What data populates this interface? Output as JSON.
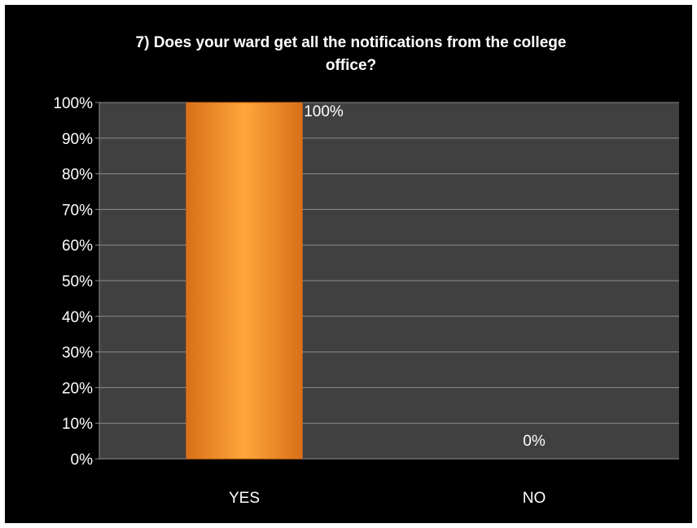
{
  "chart_data": {
    "type": "bar",
    "title": "7) Does your ward get all the notifications from the college office?",
    "title_lines": [
      "7) Does your ward get all the notifications from the college",
      "office?"
    ],
    "categories": [
      "YES",
      "NO"
    ],
    "values": [
      100,
      0
    ],
    "data_labels": [
      "100%",
      "0%"
    ],
    "ylim": [
      0,
      100
    ],
    "y_ticks": [
      0,
      10,
      20,
      30,
      40,
      50,
      60,
      70,
      80,
      90,
      100
    ],
    "y_tick_labels": [
      "0%",
      "10%",
      "20%",
      "30%",
      "40%",
      "50%",
      "60%",
      "70%",
      "80%",
      "90%",
      "100%"
    ],
    "xlabel": "",
    "ylabel": "",
    "grid": true,
    "legend": "none",
    "colors": {
      "background": "#000000",
      "plot_area": "#404040",
      "gridline": "#8c8c8c",
      "bar": "#f7931e",
      "bar_highlight": "#ffa63a",
      "bar_shadow": "#d9701a",
      "text": "#ffffff"
    }
  }
}
